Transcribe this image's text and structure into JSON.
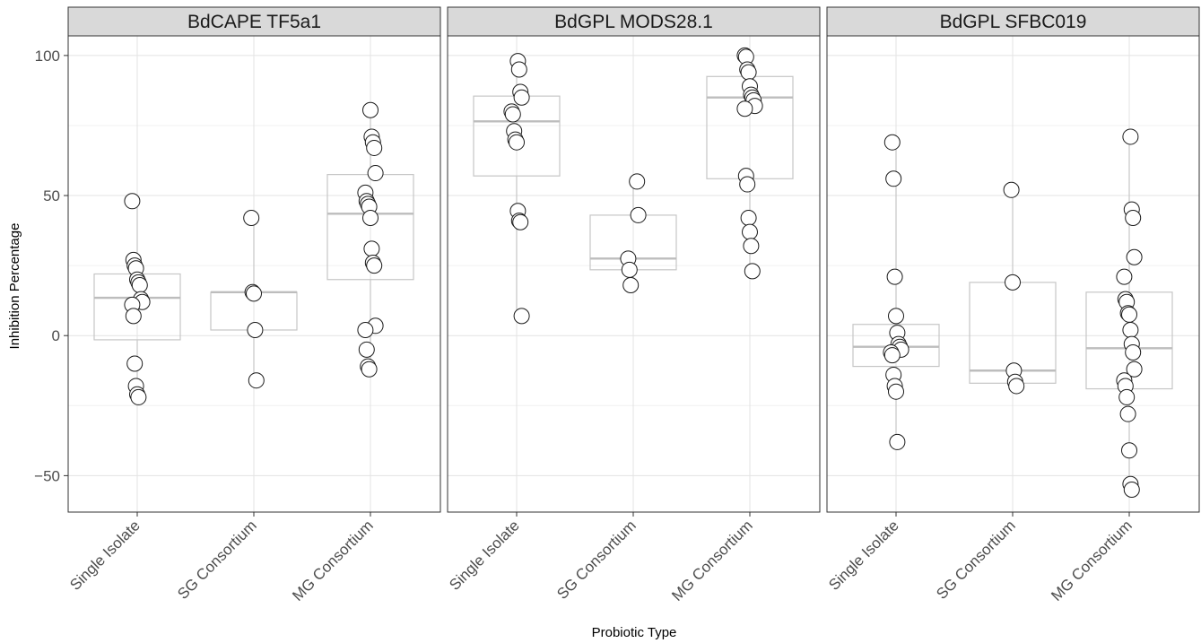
{
  "chart_data": {
    "type": "boxplot",
    "xlabel": "Probiotic Type",
    "ylabel": "Inhibition Percentage",
    "ylim": [
      -63,
      107
    ],
    "yticks": [
      -50,
      0,
      50,
      100
    ],
    "ytick_labels": [
      "−50",
      "0",
      "50",
      "100"
    ],
    "categories": [
      "Single Isolate",
      "SG Consortium",
      "MG Consortium"
    ],
    "grid": true,
    "facets": [
      {
        "title": "BdCAPE TF5a1",
        "groups": [
          {
            "category": "Single Isolate",
            "box": {
              "q1": -1.5,
              "median": 13.5,
              "q3": 22,
              "whisker_low": -22,
              "whisker_high": 48
            },
            "points": [
              48,
              27,
              25,
              24,
              20,
              19,
              18,
              13,
              12,
              11,
              7,
              -10,
              -18,
              -21,
              -22
            ]
          },
          {
            "category": "SG Consortium",
            "box": {
              "q1": 2,
              "median": 15.5,
              "q3": 15.5,
              "whisker_low": -16,
              "whisker_high": 42
            },
            "points": [
              42,
              15.5,
              15,
              2,
              -16
            ]
          },
          {
            "category": "MG Consortium",
            "box": {
              "q1": 20,
              "median": 43.5,
              "q3": 57.5,
              "whisker_low": -12,
              "whisker_high": 80.5
            },
            "points": [
              80.5,
              71,
              69,
              67,
              58,
              51,
              48,
              47,
              46,
              42,
              31,
              26,
              25,
              3.5,
              2,
              -5,
              -11,
              -12
            ]
          }
        ]
      },
      {
        "title": "BdGPL MODS28.1",
        "groups": [
          {
            "category": "Single Isolate",
            "box": {
              "q1": 57,
              "median": 76.5,
              "q3": 85.5,
              "whisker_low": 7,
              "whisker_high": 98
            },
            "points": [
              98,
              95,
              87,
              85,
              80,
              79,
              73,
              70,
              69,
              44.5,
              41,
              40.5,
              7
            ]
          },
          {
            "category": "SG Consortium",
            "box": {
              "q1": 23.5,
              "median": 27.5,
              "q3": 43,
              "whisker_low": 18,
              "whisker_high": 55
            },
            "points": [
              55,
              43,
              27.5,
              23.5,
              18
            ]
          },
          {
            "category": "MG Consortium",
            "box": {
              "q1": 56,
              "median": 85,
              "q3": 92.5,
              "whisker_low": 23,
              "whisker_high": 100
            },
            "points": [
              100,
              99.5,
              95,
              94,
              89,
              86,
              85,
              84,
              82,
              81,
              57,
              54,
              42,
              37,
              32,
              23
            ]
          }
        ]
      },
      {
        "title": "BdGPL SFBC019",
        "groups": [
          {
            "category": "Single Isolate",
            "box": {
              "q1": -11,
              "median": -4,
              "q3": 4,
              "whisker_low": -38,
              "whisker_high": 69
            },
            "points": [
              69,
              56,
              21,
              7,
              1,
              -3,
              -4,
              -5,
              -6,
              -7,
              -14,
              -18,
              -20,
              -38
            ]
          },
          {
            "category": "SG Consortium",
            "box": {
              "q1": -17,
              "median": -12.5,
              "q3": 19,
              "whisker_low": -18,
              "whisker_high": 52
            },
            "points": [
              52,
              19,
              -12.5,
              -16.5,
              -18
            ]
          },
          {
            "category": "MG Consortium",
            "box": {
              "q1": -19,
              "median": -4.5,
              "q3": 15.5,
              "whisker_low": -55,
              "whisker_high": 71
            },
            "points": [
              71,
              45,
              42,
              28,
              21,
              13,
              12,
              8,
              7.5,
              2,
              -3,
              -6,
              -12,
              -16,
              -18,
              -22,
              -28,
              -41,
              -53,
              -55
            ]
          }
        ]
      }
    ]
  }
}
